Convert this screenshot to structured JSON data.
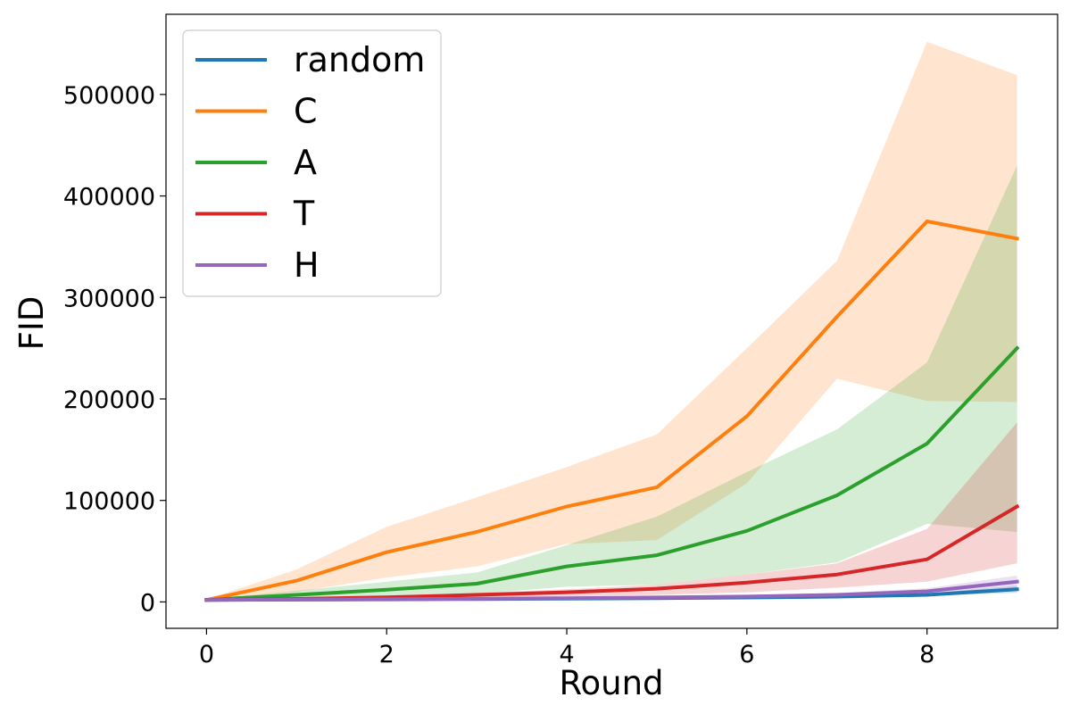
{
  "chart_data": {
    "type": "line",
    "xlabel": "Round",
    "ylabel": "FID",
    "xlim": [
      -0.45,
      9.45
    ],
    "ylim": [
      -26000,
      579000
    ],
    "xticks": [
      0,
      2,
      4,
      6,
      8
    ],
    "yticks": [
      0,
      100000,
      200000,
      300000,
      400000,
      500000
    ],
    "grid": false,
    "legend_position": "top-left",
    "x": [
      0,
      1,
      2,
      3,
      4,
      5,
      6,
      7,
      8,
      9
    ],
    "series": [
      {
        "name": "random",
        "color": "#1f77b4",
        "values": [
          2000,
          2200,
          2500,
          2800,
          3200,
          3700,
          4300,
          5200,
          7000,
          12500
        ],
        "lower": [
          1800,
          2000,
          2200,
          2400,
          2800,
          3200,
          3700,
          4400,
          5800,
          9000
        ],
        "upper": [
          2200,
          2500,
          2900,
          3200,
          3800,
          4300,
          5000,
          6100,
          8600,
          16000
        ]
      },
      {
        "name": "C",
        "color": "#ff7f0e",
        "values": [
          2000,
          21000,
          49000,
          69000,
          94000,
          113000,
          183000,
          281000,
          375000,
          358000
        ],
        "lower": [
          1500,
          10000,
          24000,
          35000,
          57000,
          61000,
          117000,
          220000,
          198000,
          197000
        ],
        "upper": [
          2500,
          32000,
          74000,
          103000,
          133000,
          165000,
          250000,
          336000,
          552000,
          519000
        ]
      },
      {
        "name": "A",
        "color": "#2ca02c",
        "values": [
          2000,
          7000,
          12000,
          18000,
          35000,
          46000,
          70000,
          105000,
          156000,
          250000
        ],
        "lower": [
          1500,
          3000,
          5000,
          8000,
          15000,
          17000,
          27000,
          39000,
          77000,
          69000
        ],
        "upper": [
          2500,
          11000,
          20000,
          29000,
          56000,
          84000,
          128000,
          170000,
          236000,
          430000
        ]
      },
      {
        "name": "T",
        "color": "#d62728",
        "values": [
          2000,
          3000,
          4500,
          7000,
          9500,
          13000,
          19000,
          27000,
          42000,
          94000
        ],
        "lower": [
          1500,
          2000,
          3000,
          4000,
          5500,
          7000,
          9500,
          14000,
          20000,
          38000
        ],
        "upper": [
          2500,
          4000,
          6000,
          9000,
          12500,
          17000,
          27000,
          38000,
          72000,
          177000
        ]
      },
      {
        "name": "H",
        "color": "#9467bd",
        "values": [
          2000,
          2300,
          2700,
          3100,
          3700,
          4400,
          5300,
          7000,
          10500,
          20000
        ],
        "lower": [
          1800,
          2000,
          2300,
          2600,
          3000,
          3500,
          4100,
          5200,
          7500,
          14000
        ],
        "upper": [
          2200,
          2600,
          3100,
          3600,
          4400,
          5300,
          6500,
          8800,
          13500,
          26000
        ]
      }
    ]
  }
}
